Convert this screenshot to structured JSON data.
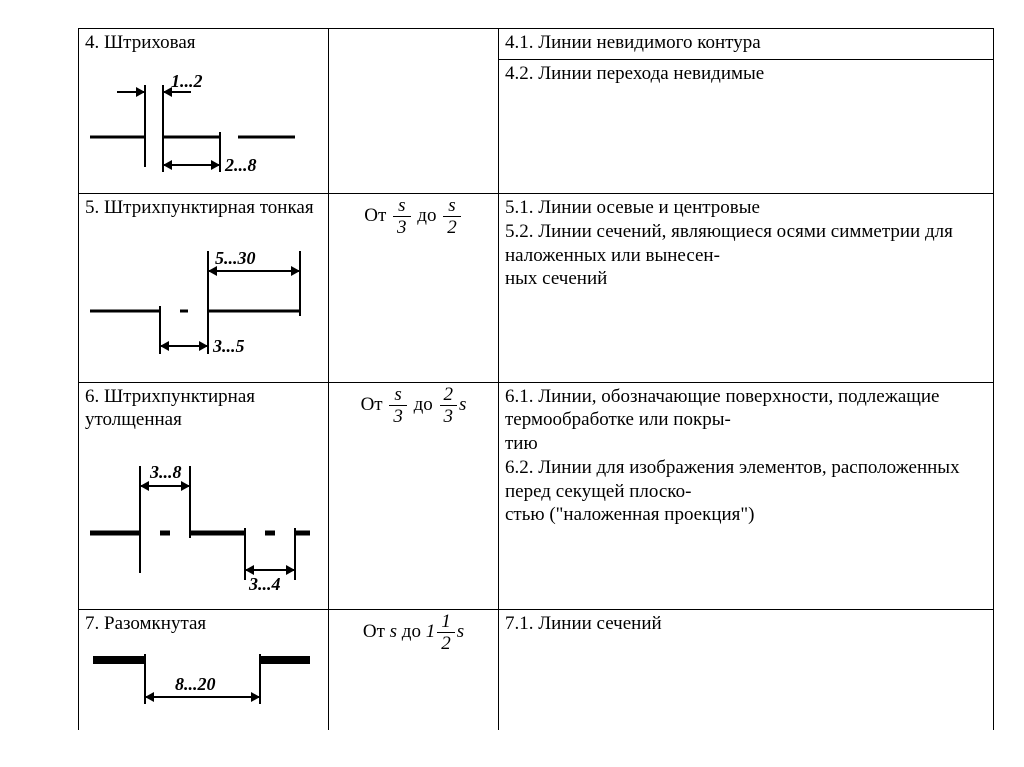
{
  "rows": [
    {
      "title": "4. Штриховая",
      "formula_html": "",
      "desc_html": "4.1. Линии невидимого контура",
      "diagram": null
    },
    {
      "title": "",
      "formula_html": "",
      "desc_html": "4.2. Линии перехода невидимые",
      "diagram": "dashed"
    },
    {
      "title": "5. Штрихпунктирная тонкая",
      "formula_html": "<span class='ot'>От </span><span class='frac'><span class='num'>s</span><span class='den'>3</span></span> <span class='ot'>до</span> <span class='frac'><span class='num'>s</span><span class='den'>2</span></span>",
      "desc_html": "5.1. Линии осевые и центровые<br>5.2. Линии сечений, являющиеся осями симметрии для наложенных или вынесен-<br>ных сечений",
      "diagram": "dashdot_thin"
    },
    {
      "title": "6. Штрихпунктирная утолщенная",
      "formula_html": "<span class='ot'>От </span><span class='frac'><span class='num'>s</span><span class='den'>3</span></span> <span class='ot'>до</span> <span class='frac'><span class='num'>2</span><span class='den'>3</span></span><span style='font-style:italic'>s</span>",
      "desc_html": "6.1. Линии, обозначающие поверхности, подлежащие термообработке или покры-<br>тию<br>6.2. Линии для изображения элементов, расположенных перед секущей плоско-<br>стью (\"наложенная проекция\")",
      "diagram": "dashdot_thick"
    },
    {
      "title": "7. Разомкнутая",
      "formula_html": "<span class='ot'>От </span><span style='font-style:italic'>s</span> <span class='ot'>до</span> <span style='font-style:italic'>1</span><span class='frac'><span class='num'>1</span><span class='den'>2</span></span><span style='font-style:italic'>s</span>",
      "desc_html": "7.1. Линии сечений",
      "diagram": "open"
    }
  ],
  "dim_labels": {
    "dashed_gap": "1...2",
    "dashed_dash": "2...8",
    "thin_dash": "5...30",
    "thin_gap": "3...5",
    "thick_dash": "3...8",
    "thick_gap": "3...4",
    "open_gap": "8...20"
  },
  "style": {
    "stroke": "#000000",
    "thin": 2,
    "med": 3,
    "thick": 5,
    "very_thick": 8,
    "font_size_dim": 18
  }
}
